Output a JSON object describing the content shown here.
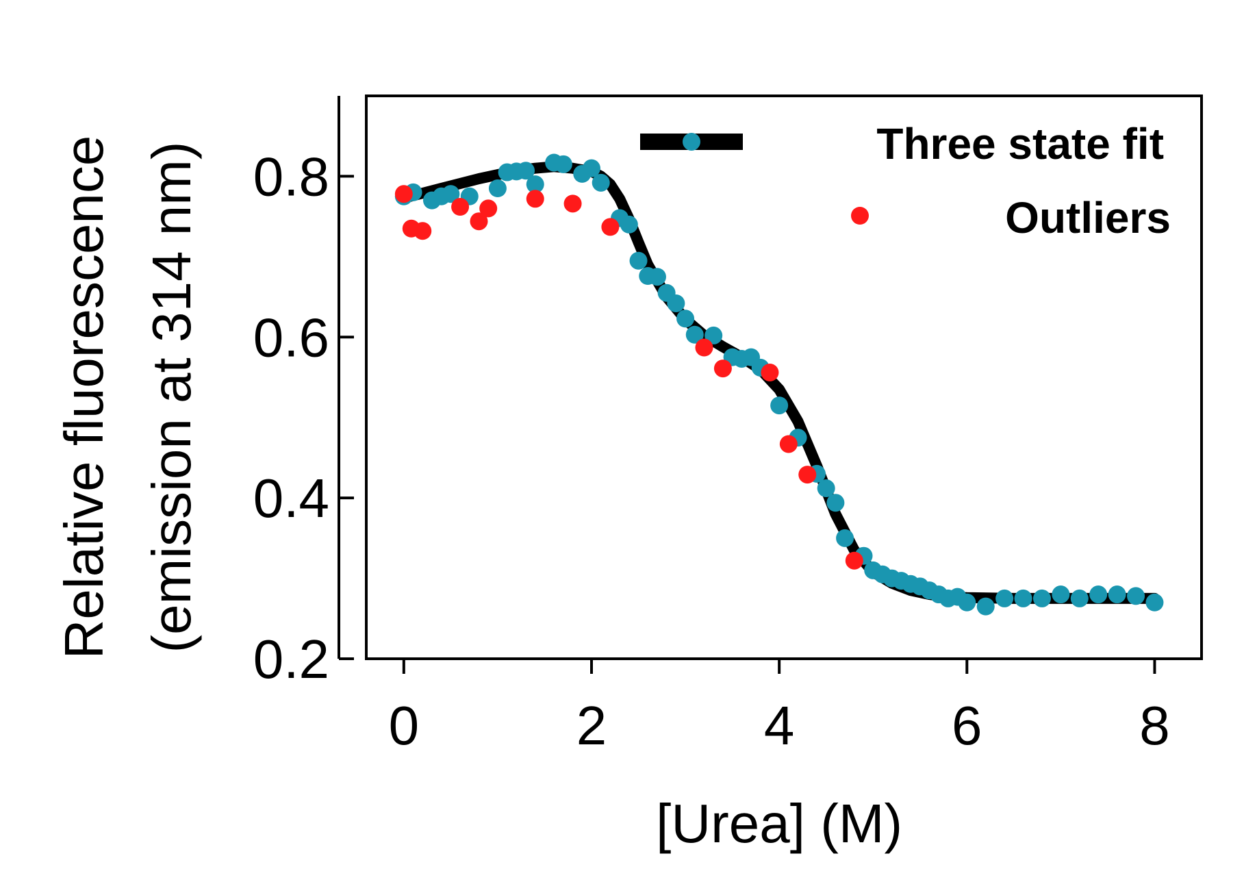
{
  "chart_data": {
    "type": "scatter",
    "title": "",
    "xlabel": "[Urea] (M)",
    "ylabel_lines": [
      "Relative fluorescence",
      "(emission at 314 nm)"
    ],
    "xlim": [
      -0.4,
      8.5
    ],
    "ylim": [
      0.2,
      0.9
    ],
    "x_ticks": [
      0,
      2,
      4,
      6,
      8
    ],
    "y_ticks": [
      0.2,
      0.4,
      0.6,
      0.8
    ],
    "x_tick_labels": [
      "0",
      "2",
      "4",
      "6",
      "8"
    ],
    "y_tick_labels": [
      "0.2",
      "0.4",
      "0.6",
      "0.8"
    ],
    "grid": false,
    "legend_position": "top-right",
    "colors": {
      "fit": "#000000",
      "data": "#1a96b0",
      "outliers": "#ff1a1a"
    },
    "series": [
      {
        "name": "Three state fit",
        "kind": "line",
        "x": [
          0,
          0.2,
          0.4,
          0.6,
          0.8,
          1.0,
          1.2,
          1.4,
          1.6,
          1.8,
          2.0,
          2.1,
          2.2,
          2.3,
          2.4,
          2.5,
          2.6,
          2.8,
          3.0,
          3.2,
          3.4,
          3.6,
          3.8,
          4.0,
          4.2,
          4.4,
          4.6,
          4.8,
          5.0,
          5.2,
          5.4,
          5.6,
          5.8,
          6.0,
          6.5,
          7.0,
          7.5,
          8.0
        ],
        "y": [
          0.773,
          0.779,
          0.785,
          0.791,
          0.797,
          0.802,
          0.807,
          0.81,
          0.812,
          0.81,
          0.806,
          0.8,
          0.79,
          0.772,
          0.747,
          0.718,
          0.69,
          0.65,
          0.622,
          0.602,
          0.588,
          0.575,
          0.56,
          0.535,
          0.495,
          0.44,
          0.38,
          0.335,
          0.308,
          0.294,
          0.285,
          0.28,
          0.277,
          0.276,
          0.275,
          0.275,
          0.275,
          0.275
        ]
      },
      {
        "name": "",
        "kind": "markers",
        "x": [
          0.0,
          0.1,
          0.3,
          0.4,
          0.5,
          0.7,
          1.0,
          1.1,
          1.2,
          1.3,
          1.4,
          1.6,
          1.7,
          1.9,
          2.0,
          2.1,
          2.3,
          2.4,
          2.5,
          2.6,
          2.7,
          2.8,
          2.9,
          3.0,
          3.1,
          3.3,
          3.5,
          3.6,
          3.7,
          3.8,
          4.0,
          4.2,
          4.4,
          4.5,
          4.6,
          4.7,
          4.9,
          5.0,
          5.1,
          5.2,
          5.3,
          5.4,
          5.5,
          5.6,
          5.7,
          5.8,
          5.9,
          6.0,
          6.2,
          6.4,
          6.6,
          6.8,
          7.0,
          7.2,
          7.4,
          7.6,
          7.8,
          8.0
        ],
        "y": [
          0.775,
          0.78,
          0.77,
          0.775,
          0.778,
          0.775,
          0.785,
          0.805,
          0.806,
          0.807,
          0.79,
          0.817,
          0.815,
          0.803,
          0.81,
          0.792,
          0.748,
          0.74,
          0.695,
          0.676,
          0.675,
          0.655,
          0.642,
          0.623,
          0.603,
          0.602,
          0.575,
          0.573,
          0.575,
          0.562,
          0.515,
          0.475,
          0.43,
          0.412,
          0.394,
          0.35,
          0.328,
          0.31,
          0.305,
          0.3,
          0.297,
          0.293,
          0.29,
          0.285,
          0.28,
          0.275,
          0.277,
          0.27,
          0.265,
          0.275,
          0.275,
          0.275,
          0.28,
          0.275,
          0.28,
          0.28,
          0.278,
          0.27
        ]
      },
      {
        "name": "Outliers",
        "kind": "markers",
        "x": [
          0.0,
          0.08,
          0.2,
          0.6,
          0.8,
          0.9,
          1.4,
          1.8,
          2.2,
          3.2,
          3.4,
          3.9,
          4.1,
          4.3,
          4.8
        ],
        "y": [
          0.778,
          0.735,
          0.732,
          0.762,
          0.744,
          0.76,
          0.772,
          0.766,
          0.737,
          0.587,
          0.561,
          0.556,
          0.467,
          0.429,
          0.322
        ]
      }
    ],
    "legend": [
      {
        "label": "Three state fit",
        "symbol": "line-with-marker"
      },
      {
        "label": "Outliers",
        "symbol": "marker"
      }
    ]
  }
}
